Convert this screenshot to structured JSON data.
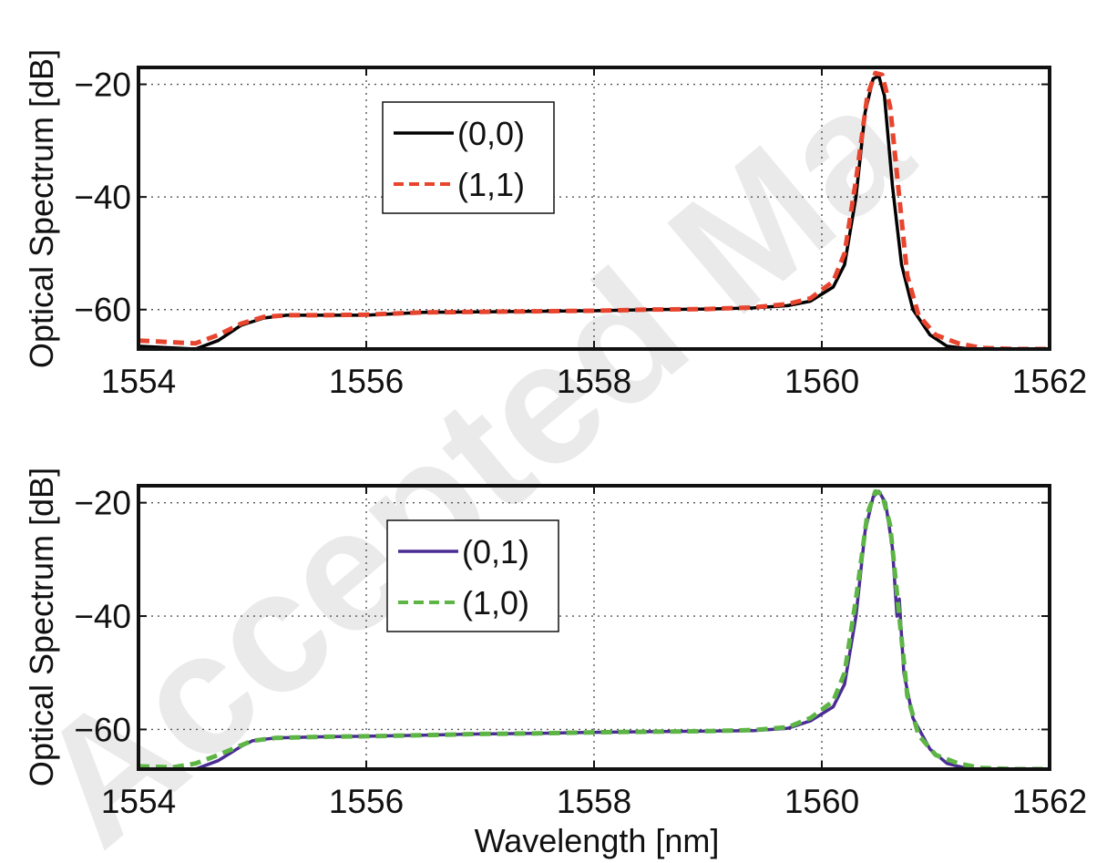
{
  "watermark": "Accepted Ma",
  "chart_data": [
    {
      "type": "line",
      "title": "",
      "xlabel": "",
      "ylabel": "Optical Spectrum [dB]",
      "xlim": [
        1554,
        1562
      ],
      "ylim": [
        -67,
        -17
      ],
      "xticks": [
        1554,
        1556,
        1558,
        1560,
        1562
      ],
      "yticks": [
        -60,
        -40,
        -20
      ],
      "ytick_labels": [
        "−60",
        "−40",
        "−20"
      ],
      "grid": true,
      "legend_position": "upper-left",
      "series": [
        {
          "name": "(0,0)",
          "color": "#000000",
          "style": "solid",
          "x": [
            1554.0,
            1554.3,
            1554.5,
            1554.7,
            1554.9,
            1555.1,
            1555.3,
            1555.6,
            1556.0,
            1556.5,
            1557.0,
            1557.5,
            1558.0,
            1558.5,
            1559.0,
            1559.4,
            1559.7,
            1559.9,
            1560.1,
            1560.2,
            1560.3,
            1560.38,
            1560.45,
            1560.5,
            1560.55,
            1560.62,
            1560.7,
            1560.8,
            1560.95,
            1561.1,
            1561.3,
            1561.6,
            1562.0
          ],
          "y": [
            -66.5,
            -66.8,
            -67.0,
            -65.5,
            -62.8,
            -61.5,
            -61.0,
            -61.0,
            -61.0,
            -60.5,
            -60.4,
            -60.3,
            -60.2,
            -60.0,
            -59.9,
            -59.7,
            -59.3,
            -58.5,
            -56.0,
            -52.0,
            -40.0,
            -25.0,
            -19.0,
            -18.5,
            -22.0,
            -38.0,
            -52.0,
            -60.0,
            -64.5,
            -66.5,
            -67.0,
            -67.0,
            -67.0
          ]
        },
        {
          "name": "(1,1)",
          "color": "#e8452f",
          "style": "dashed",
          "x": [
            1554.0,
            1554.3,
            1554.5,
            1554.7,
            1554.9,
            1555.1,
            1555.3,
            1555.6,
            1556.0,
            1556.5,
            1557.0,
            1557.5,
            1558.0,
            1558.5,
            1559.0,
            1559.4,
            1559.7,
            1559.9,
            1560.1,
            1560.2,
            1560.3,
            1560.4,
            1560.47,
            1560.53,
            1560.6,
            1560.68,
            1560.75,
            1560.85,
            1561.0,
            1561.2,
            1561.4,
            1561.7,
            1562.0
          ],
          "y": [
            -65.5,
            -65.8,
            -66.0,
            -64.5,
            -62.5,
            -61.3,
            -61.0,
            -61.0,
            -60.9,
            -60.5,
            -60.4,
            -60.3,
            -60.2,
            -60.0,
            -59.9,
            -59.6,
            -59.0,
            -58.0,
            -55.0,
            -50.0,
            -37.0,
            -22.0,
            -18.0,
            -18.3,
            -24.0,
            -40.0,
            -54.0,
            -61.0,
            -64.5,
            -66.0,
            -66.8,
            -67.0,
            -67.0
          ]
        }
      ]
    },
    {
      "type": "line",
      "title": "",
      "xlabel": "Wavelength [nm]",
      "ylabel": "Optical Spectrum [dB]",
      "xlim": [
        1554,
        1562
      ],
      "ylim": [
        -67,
        -17
      ],
      "xticks": [
        1554,
        1556,
        1558,
        1560,
        1562
      ],
      "yticks": [
        -60,
        -40,
        -20
      ],
      "ytick_labels": [
        "−60",
        "−40",
        "−20"
      ],
      "grid": true,
      "legend_position": "upper-left",
      "series": [
        {
          "name": "(0,1)",
          "color": "#4b2c94",
          "style": "solid",
          "x": [
            1554.0,
            1554.3,
            1554.5,
            1554.7,
            1554.9,
            1555.0,
            1555.2,
            1555.6,
            1556.0,
            1556.5,
            1557.0,
            1557.5,
            1558.0,
            1558.5,
            1559.0,
            1559.4,
            1559.7,
            1559.9,
            1560.1,
            1560.2,
            1560.3,
            1560.38,
            1560.45,
            1560.5,
            1560.56,
            1560.62,
            1560.66,
            1560.68,
            1560.72,
            1560.8,
            1560.95,
            1561.1,
            1561.3,
            1561.6,
            1562.0
          ],
          "y": [
            -67.0,
            -67.0,
            -67.0,
            -65.5,
            -63.0,
            -62.0,
            -61.5,
            -61.3,
            -61.2,
            -61.0,
            -60.8,
            -60.7,
            -60.5,
            -60.4,
            -60.3,
            -60.2,
            -59.8,
            -58.5,
            -56.0,
            -52.0,
            -40.0,
            -25.0,
            -19.0,
            -18.0,
            -20.0,
            -28.0,
            -40.0,
            -37.0,
            -50.0,
            -58.0,
            -63.5,
            -66.0,
            -67.0,
            -67.0,
            -67.0
          ]
        },
        {
          "name": "(1,0)",
          "color": "#5db545",
          "style": "dashed",
          "x": [
            1554.0,
            1554.3,
            1554.5,
            1554.7,
            1554.9,
            1555.0,
            1555.2,
            1555.6,
            1556.0,
            1556.5,
            1557.0,
            1557.5,
            1558.0,
            1558.5,
            1559.0,
            1559.4,
            1559.7,
            1559.9,
            1560.1,
            1560.2,
            1560.3,
            1560.4,
            1560.47,
            1560.53,
            1560.6,
            1560.68,
            1560.75,
            1560.85,
            1561.0,
            1561.2,
            1561.4,
            1561.7,
            1562.0
          ],
          "y": [
            -66.5,
            -66.7,
            -66.0,
            -64.5,
            -62.8,
            -62.0,
            -61.5,
            -61.3,
            -61.2,
            -61.0,
            -60.8,
            -60.7,
            -60.5,
            -60.4,
            -60.3,
            -60.1,
            -59.6,
            -58.0,
            -55.0,
            -50.0,
            -37.0,
            -22.0,
            -18.0,
            -18.5,
            -24.0,
            -40.0,
            -54.0,
            -61.0,
            -64.5,
            -66.0,
            -66.8,
            -67.0,
            -67.0
          ]
        }
      ]
    }
  ]
}
